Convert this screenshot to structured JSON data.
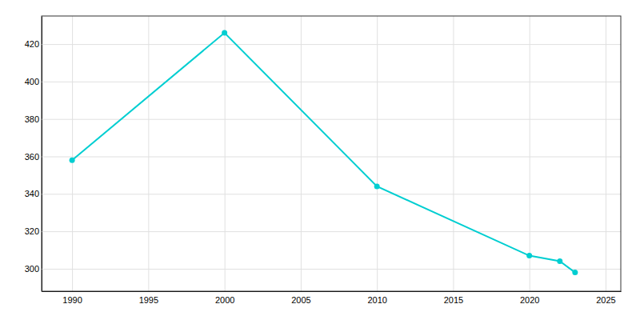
{
  "chart_data": {
    "type": "line",
    "x": [
      1990,
      2000,
      2010,
      2020,
      2022,
      2023
    ],
    "values": [
      358,
      426,
      344,
      307,
      304,
      298
    ],
    "color": "#00CED1",
    "marker": "circle",
    "xlim": [
      1988,
      2026
    ],
    "ylim": [
      288,
      435
    ],
    "xticks": [
      1990,
      1995,
      2000,
      2005,
      2010,
      2015,
      2020,
      2025
    ],
    "yticks": [
      300,
      320,
      340,
      360,
      380,
      400,
      420
    ],
    "grid": true
  }
}
